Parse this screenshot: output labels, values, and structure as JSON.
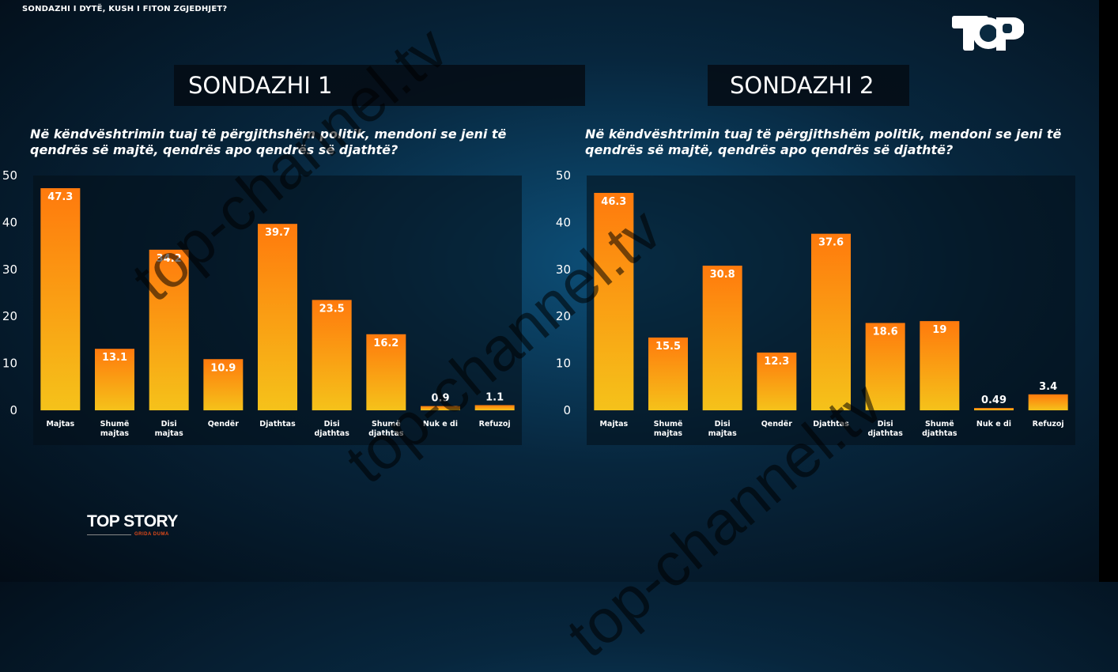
{
  "headline": "SONDAZHI I DYTË, KUSH I FITON ZGJEDHJET?",
  "polls": [
    {
      "header": "SONDAZHI 1",
      "question": "Në këndvështrimin tuaj të përgjithshëm politik, mendoni se jeni të qendrës së majtë, qendrës apo qendrës së djathtë?"
    },
    {
      "header": "SONDAZHI 2",
      "question": "Në këndvështrimin tuaj të përgjithshëm politik, mendoni se jeni të qendrës së majtë, qendrës apo qendrës së djathtë?"
    }
  ],
  "brand": {
    "name": "TOP STORY",
    "sub": "GRIDA DUMA"
  },
  "watermark": "top-channel.tv",
  "colors": {
    "bar_top": "#ff7a0d",
    "bar_bottom": "#f5c21a",
    "axis_text": "#ffffff"
  },
  "chart_data": [
    {
      "type": "bar",
      "title": "SONDAZHI 1",
      "categories": [
        "Majtas",
        "Shumë majtas",
        "Disi majtas",
        "Qendër",
        "Djathtas",
        "Disi djathtas",
        "Shumë djathtas",
        "Nuk e di",
        "Refuzoj"
      ],
      "values": [
        47.3,
        13.1,
        34.2,
        10.9,
        39.7,
        23.5,
        16.2,
        0.9,
        1.1
      ],
      "value_labels": [
        "47.3",
        "13.1",
        "34.2",
        "10.9",
        "39.7",
        "23.5",
        "16.2",
        "0.9",
        "1.1"
      ],
      "yticks": [
        "0",
        "10",
        "20",
        "30",
        "40",
        "50"
      ],
      "ylim": [
        0,
        50
      ],
      "grid": false
    },
    {
      "type": "bar",
      "title": "SONDAZHI 2",
      "categories": [
        "Majtas",
        "Shumë majtas",
        "Disi majtas",
        "Qendër",
        "Djathtas",
        "Disi djathtas",
        "Shumë djathtas",
        "Nuk e di",
        "Refuzoj"
      ],
      "values": [
        46.3,
        15.5,
        30.8,
        12.3,
        37.6,
        18.6,
        19,
        0.49,
        3.4
      ],
      "value_labels": [
        "46.3",
        "15.5",
        "30.8",
        "12.3",
        "37.6",
        "18.6",
        "19",
        "0.49",
        "3.4"
      ],
      "yticks": [
        "0",
        "10",
        "20",
        "30",
        "40",
        "50"
      ],
      "ylim": [
        0,
        50
      ],
      "grid": false
    }
  ]
}
